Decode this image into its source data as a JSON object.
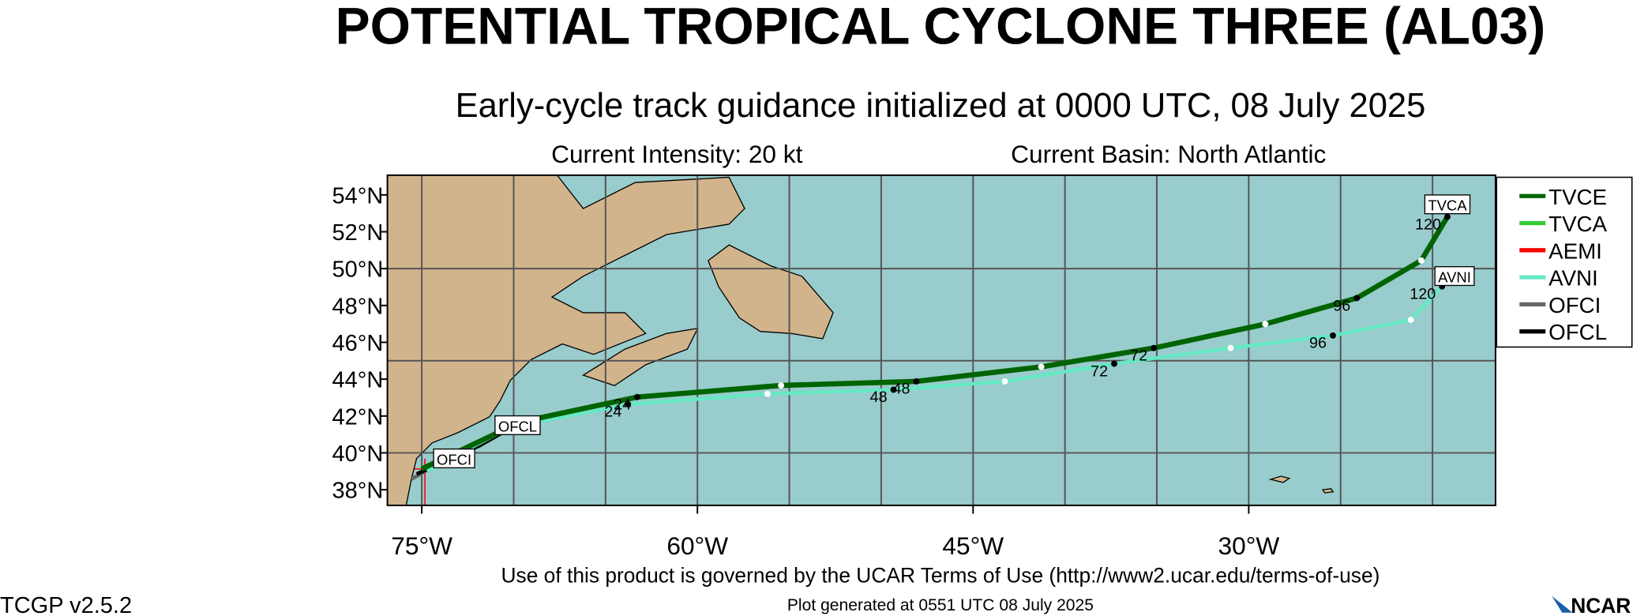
{
  "header": {
    "title": "POTENTIAL TROPICAL CYCLONE THREE (AL03)",
    "subtitle": "Early-cycle track guidance initialized at 0000 UTC, 08 July 2025",
    "intensity": "Current Intensity: 20 kt",
    "basin": "Current Basin: North Atlantic"
  },
  "map": {
    "xlim": [
      -76.87,
      -16.57
    ],
    "ylim": [
      37.15,
      55.07
    ],
    "xticks": [
      {
        "value": -75,
        "label": "75°W"
      },
      {
        "value": -60,
        "label": "60°W"
      },
      {
        "value": -45,
        "label": "45°W"
      },
      {
        "value": -30,
        "label": "30°W"
      }
    ],
    "yticks": [
      {
        "value": 38,
        "label": "38°N"
      },
      {
        "value": 40,
        "label": "40°N"
      },
      {
        "value": 42,
        "label": "42°N"
      },
      {
        "value": 44,
        "label": "44°N"
      },
      {
        "value": 46,
        "label": "46°N"
      },
      {
        "value": 48,
        "label": "48°N"
      },
      {
        "value": 50,
        "label": "50°N"
      },
      {
        "value": 52,
        "label": "52°N"
      },
      {
        "value": 54,
        "label": "54°N"
      }
    ],
    "grid_lon": [
      -75,
      -70,
      -65,
      -60,
      -55,
      -50,
      -45,
      -40,
      -35,
      -30,
      -25,
      -20
    ],
    "grid_lat": [
      40,
      45,
      50
    ]
  },
  "legend": [
    {
      "name": "TVCE",
      "color": "#006400"
    },
    {
      "name": "TVCA",
      "color": "#33cc33"
    },
    {
      "name": "AEMI",
      "color": "#ff0000"
    },
    {
      "name": "AVNI",
      "color": "#66e8c4"
    },
    {
      "name": "OFCI",
      "color": "#666666"
    },
    {
      "name": "OFCL",
      "color": "#000000"
    }
  ],
  "label_hours": [
    24,
    48,
    72,
    96,
    120
  ],
  "tracks": [
    {
      "box": "TVCA",
      "color": "#006400",
      "hours": [
        0,
        12,
        24,
        36,
        48,
        60,
        72,
        84,
        96,
        108,
        120
      ],
      "lon": [
        -75.0,
        -69.62,
        -63.27,
        -55.45,
        -48.09,
        -41.29,
        -35.17,
        -29.1,
        -24.12,
        -20.61,
        -19.19
      ],
      "lat": [
        39.13,
        41.68,
        43.03,
        43.66,
        43.88,
        44.67,
        45.69,
        46.99,
        48.4,
        50.44,
        52.81
      ]
    },
    {
      "box": "AVNI",
      "color": "#66e8c4",
      "hours": [
        0,
        12,
        24,
        36,
        48,
        60,
        72,
        84,
        96,
        108,
        120
      ],
      "lon": [
        -74.72,
        -70.19,
        -63.78,
        -56.19,
        -49.33,
        -43.27,
        -37.32,
        -30.98,
        -25.42,
        -21.18,
        -19.48
      ],
      "lat": [
        39.02,
        41.4,
        42.64,
        43.2,
        43.43,
        43.88,
        44.84,
        45.69,
        46.37,
        47.22,
        49.03
      ]
    },
    {
      "box": "OFCL",
      "color": "#000000",
      "lon": [
        -75.28,
        -71.88,
        -69.9
      ],
      "lat": [
        38.85,
        40.38,
        41.5
      ]
    },
    {
      "box": "OFCI",
      "color": "#666666",
      "lon": [
        -75.57,
        -73.58
      ],
      "lat": [
        38.57,
        39.7
      ]
    }
  ],
  "footer": {
    "terms": "Use of this product is governed by the UCAR Terms of Use (http://www2.ucar.edu/terms-of-use)",
    "version": "TCGP v2.5.2",
    "generated": "Plot generated at 0551 UTC   08 July 2025",
    "logo": "NCAR"
  }
}
